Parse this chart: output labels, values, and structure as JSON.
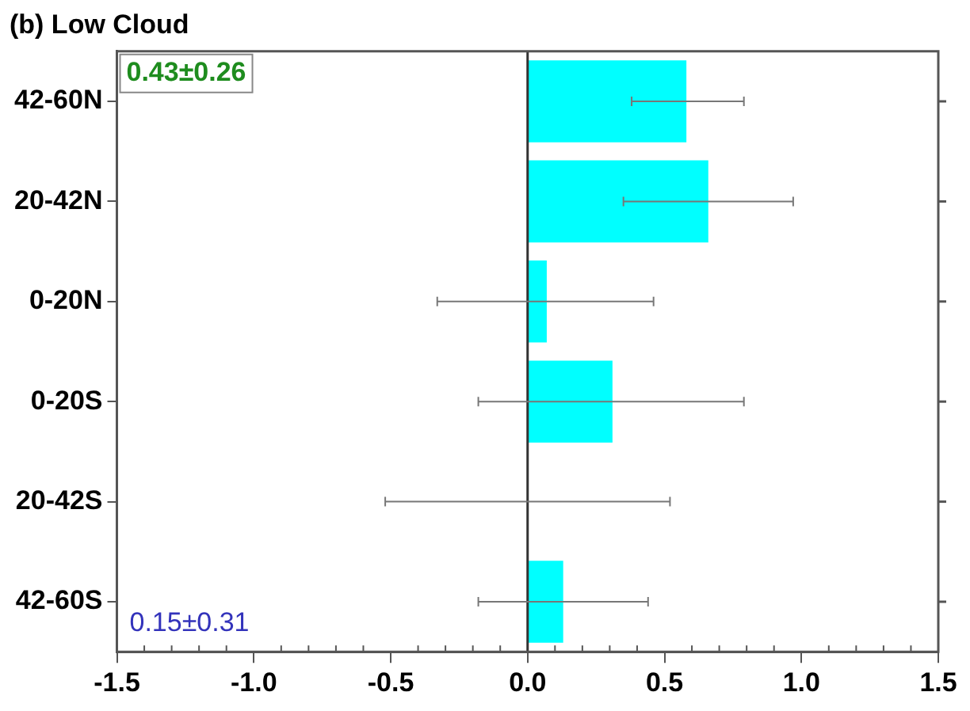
{
  "chart_data": {
    "type": "bar",
    "orientation": "horizontal",
    "title": "(b) Low Cloud",
    "categories": [
      "42-60N",
      "20-42N",
      "0-20N",
      "0-20S",
      "20-42S",
      "42-60S"
    ],
    "values": [
      0.58,
      0.66,
      0.07,
      0.31,
      0,
      0.13
    ],
    "errors": [
      [
        0.38,
        0.79
      ],
      [
        0.35,
        0.97
      ],
      [
        -0.33,
        0.46
      ],
      [
        -0.18,
        0.79
      ],
      [
        -0.52,
        0.52
      ],
      [
        -0.18,
        0.44
      ]
    ],
    "color": "#00ffff",
    "xlim": [
      -1.5,
      1.5
    ],
    "xticks": [
      {
        "value": -1.5,
        "label": "-1.5"
      },
      {
        "value": -1,
        "label": "-1.0"
      },
      {
        "value": -0.5,
        "label": "-0.5"
      },
      {
        "value": 0,
        "label": "0.0"
      },
      {
        "value": 0.5,
        "label": "0.5"
      },
      {
        "value": 1,
        "label": "1.0"
      },
      {
        "value": 1.5,
        "label": "1.5"
      }
    ],
    "ref_lines": [
      {
        "axis": "x",
        "value": 0,
        "color": "#333333"
      }
    ],
    "grid": false,
    "legend": false,
    "annotations": [
      "0.43±0.26",
      "0.15±0.31"
    ]
  }
}
